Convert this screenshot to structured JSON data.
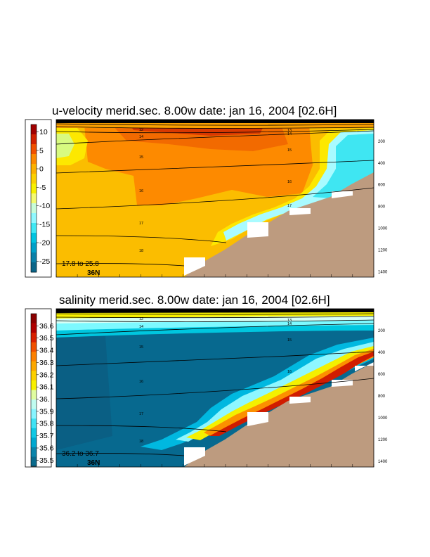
{
  "chart_data": [
    {
      "type": "heatmap",
      "title": "u-velocity merid.sec.  8.00w   date: jan 16, 2004   [02.6H]",
      "colorbar": {
        "ticks": [
          "10",
          "5",
          "0",
          "-5",
          "-10",
          "-15",
          "-20",
          "-25"
        ],
        "range": [
          -28,
          12
        ]
      },
      "depth_ticks": [
        "200",
        "400",
        "600",
        "800",
        "1000",
        "1200",
        "1400"
      ],
      "depth_range": [
        0,
        1450
      ],
      "contour_labels": [
        "12",
        "14",
        "15",
        "16",
        "17",
        "18",
        "13",
        "14",
        "15",
        "16",
        "17"
      ],
      "range_note": "17.8 to  25.8",
      "latitude_label": "36N",
      "colors": {
        "land": "#bd9b7f"
      }
    },
    {
      "type": "heatmap",
      "title": "salinity merid.sec.  8.00w   date: jan 16, 2004   [02.6H]",
      "colorbar": {
        "ticks": [
          "36.6",
          "36.5",
          "36.4",
          "36.3",
          "36.2",
          "36.1",
          "36.",
          "35.9",
          "35.8",
          "35.7",
          "35.6",
          "35.5"
        ],
        "range": [
          35.45,
          36.7
        ]
      },
      "depth_ticks": [
        "200",
        "400",
        "600",
        "800",
        "1000",
        "1200",
        "1400"
      ],
      "depth_range": [
        0,
        1450
      ],
      "contour_labels": [
        "12",
        "14",
        "15",
        "16",
        "17",
        "18",
        "13",
        "14",
        "15",
        "16"
      ],
      "range_note": "36.2 to  36.7",
      "latitude_label": "36N",
      "colors": {
        "land": "#bd9b7f"
      }
    }
  ]
}
